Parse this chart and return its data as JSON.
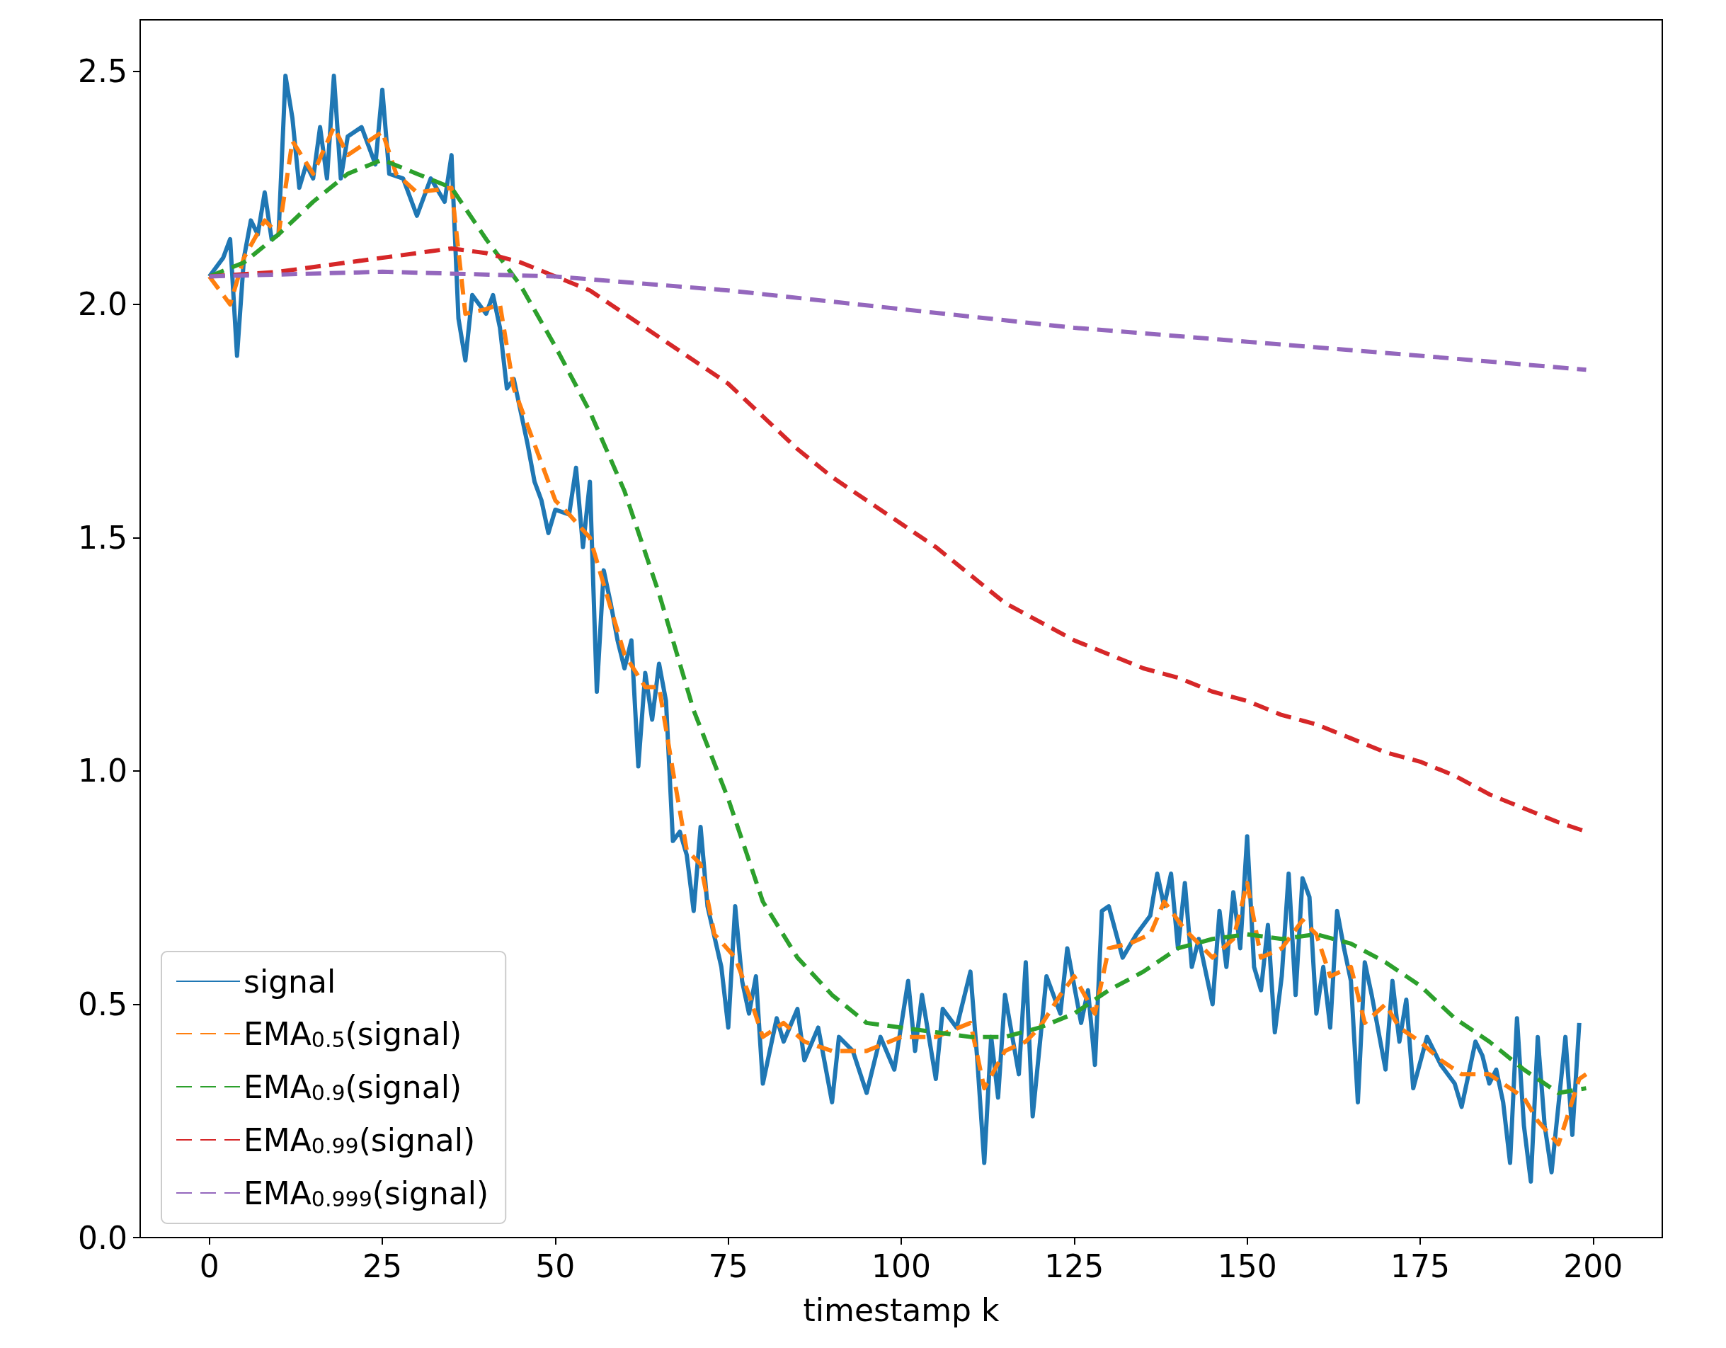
{
  "chart_data": {
    "type": "line",
    "xlabel": "timestamp k",
    "xlim": [
      -10,
      210
    ],
    "xticks": [
      0,
      25,
      50,
      75,
      100,
      125,
      150,
      175,
      200
    ],
    "ylim": [
      0,
      2.61
    ],
    "yticks": [
      {
        "value": 0,
        "label": "0.0"
      },
      {
        "value": 0.5,
        "label": "0.5"
      },
      {
        "value": 1,
        "label": "1.0"
      },
      {
        "value": 1.5,
        "label": "1.5"
      },
      {
        "value": 2,
        "label": "2.0"
      },
      {
        "value": 2.5,
        "label": "2.5"
      }
    ],
    "grid": false,
    "legend": "bottom left",
    "series": [
      {
        "name": "signal",
        "color": "#1f77b4",
        "line_style": "solid",
        "x": [
          0,
          2,
          3,
          4,
          5,
          6,
          7,
          8,
          9,
          10,
          11,
          12,
          13,
          14,
          15,
          16,
          17,
          18,
          19,
          20,
          22,
          24,
          25,
          26,
          28,
          30,
          32,
          34,
          35,
          36,
          37,
          38,
          40,
          41,
          42,
          43,
          44,
          46,
          47,
          48,
          49,
          50,
          52,
          53,
          54,
          55,
          56,
          57,
          58,
          59,
          60,
          61,
          62,
          63,
          64,
          65,
          66,
          67,
          68,
          69,
          70,
          71,
          72,
          74,
          75,
          76,
          77,
          78,
          79,
          80,
          82,
          83,
          85,
          86,
          88,
          90,
          91,
          93,
          95,
          97,
          99,
          101,
          102,
          103,
          105,
          106,
          108,
          110,
          111,
          112,
          113,
          114,
          115,
          117,
          118,
          119,
          121,
          123,
          124,
          126,
          127,
          128,
          129,
          130,
          132,
          134,
          136,
          137,
          138,
          139,
          140,
          141,
          142,
          143,
          145,
          146,
          147,
          148,
          149,
          150,
          151,
          152,
          153,
          154,
          155,
          156,
          157,
          158,
          159,
          160,
          161,
          162,
          163,
          164,
          165,
          166,
          167,
          168,
          170,
          171,
          172,
          173,
          174,
          176,
          178,
          180,
          181,
          183,
          184,
          185,
          186,
          187,
          188,
          189,
          190,
          191,
          192,
          193,
          194,
          196,
          197,
          198
        ],
        "values": [
          2.06,
          2.1,
          2.14,
          1.89,
          2.1,
          2.18,
          2.15,
          2.24,
          2.14,
          2.15,
          2.49,
          2.4,
          2.25,
          2.3,
          2.27,
          2.38,
          2.27,
          2.49,
          2.27,
          2.36,
          2.38,
          2.3,
          2.46,
          2.28,
          2.27,
          2.19,
          2.27,
          2.22,
          2.32,
          1.97,
          1.88,
          2.02,
          1.98,
          2.02,
          1.95,
          1.82,
          1.84,
          1.7,
          1.62,
          1.58,
          1.51,
          1.56,
          1.55,
          1.65,
          1.48,
          1.62,
          1.17,
          1.43,
          1.36,
          1.28,
          1.22,
          1.28,
          1.01,
          1.21,
          1.11,
          1.23,
          1.15,
          0.85,
          0.87,
          0.82,
          0.7,
          0.88,
          0.71,
          0.58,
          0.45,
          0.71,
          0.55,
          0.48,
          0.56,
          0.33,
          0.47,
          0.42,
          0.49,
          0.38,
          0.45,
          0.29,
          0.43,
          0.4,
          0.31,
          0.43,
          0.36,
          0.55,
          0.4,
          0.52,
          0.34,
          0.49,
          0.45,
          0.57,
          0.38,
          0.16,
          0.43,
          0.3,
          0.52,
          0.35,
          0.59,
          0.26,
          0.56,
          0.48,
          0.62,
          0.46,
          0.53,
          0.37,
          0.7,
          0.71,
          0.6,
          0.65,
          0.69,
          0.78,
          0.71,
          0.78,
          0.62,
          0.76,
          0.58,
          0.64,
          0.5,
          0.7,
          0.58,
          0.74,
          0.62,
          0.86,
          0.58,
          0.53,
          0.67,
          0.44,
          0.56,
          0.78,
          0.52,
          0.77,
          0.73,
          0.48,
          0.58,
          0.45,
          0.7,
          0.62,
          0.55,
          0.29,
          0.59,
          0.52,
          0.36,
          0.55,
          0.42,
          0.51,
          0.32,
          0.43,
          0.37,
          0.33,
          0.28,
          0.42,
          0.39,
          0.33,
          0.36,
          0.29,
          0.16,
          0.47,
          0.24,
          0.12,
          0.43,
          0.24,
          0.14,
          0.43,
          0.22,
          0.46
        ]
      },
      {
        "name": "EMA$_{0.5}$(signal)",
        "color": "#ff7f0e",
        "line_style": "dashed",
        "x": [
          0,
          3,
          5,
          8,
          10,
          12,
          15,
          18,
          20,
          25,
          27,
          30,
          35,
          37,
          40,
          42,
          44,
          47,
          50,
          52,
          55,
          57,
          60,
          63,
          65,
          67,
          69,
          71,
          73,
          76,
          78,
          80,
          83,
          86,
          90,
          95,
          100,
          105,
          110,
          112,
          115,
          118,
          120,
          123,
          125,
          128,
          130,
          133,
          136,
          138,
          141,
          145,
          148,
          150,
          152,
          155,
          158,
          160,
          162,
          165,
          167,
          170,
          172,
          175,
          178,
          181,
          185,
          188,
          190,
          192,
          195,
          198,
          199
        ],
        "values": [
          2.06,
          2.0,
          2.1,
          2.18,
          2.15,
          2.35,
          2.28,
          2.38,
          2.32,
          2.37,
          2.28,
          2.24,
          2.25,
          1.98,
          1.99,
          2.0,
          1.82,
          1.7,
          1.58,
          1.55,
          1.5,
          1.4,
          1.25,
          1.18,
          1.18,
          1.0,
          0.83,
          0.8,
          0.65,
          0.6,
          0.52,
          0.43,
          0.46,
          0.42,
          0.4,
          0.4,
          0.43,
          0.43,
          0.46,
          0.32,
          0.4,
          0.42,
          0.45,
          0.52,
          0.56,
          0.48,
          0.62,
          0.63,
          0.65,
          0.72,
          0.66,
          0.6,
          0.64,
          0.76,
          0.6,
          0.62,
          0.68,
          0.65,
          0.56,
          0.58,
          0.46,
          0.5,
          0.45,
          0.42,
          0.38,
          0.35,
          0.35,
          0.32,
          0.3,
          0.25,
          0.2,
          0.34,
          0.35
        ]
      },
      {
        "name": "EMA$_{0.9}$(signal)",
        "color": "#2ca02c",
        "line_style": "dashed",
        "x": [
          0,
          5,
          10,
          15,
          20,
          25,
          30,
          35,
          40,
          45,
          50,
          55,
          60,
          65,
          70,
          75,
          80,
          85,
          90,
          95,
          100,
          105,
          110,
          115,
          120,
          125,
          130,
          135,
          140,
          145,
          150,
          155,
          160,
          165,
          170,
          175,
          180,
          185,
          190,
          195,
          199
        ],
        "values": [
          2.06,
          2.09,
          2.15,
          2.22,
          2.28,
          2.31,
          2.28,
          2.25,
          2.14,
          2.04,
          1.91,
          1.77,
          1.6,
          1.38,
          1.13,
          0.94,
          0.72,
          0.6,
          0.52,
          0.46,
          0.45,
          0.44,
          0.43,
          0.43,
          0.45,
          0.48,
          0.53,
          0.57,
          0.62,
          0.64,
          0.65,
          0.64,
          0.65,
          0.63,
          0.59,
          0.54,
          0.47,
          0.42,
          0.36,
          0.31,
          0.32
        ]
      },
      {
        "name": "EMA$_{0.99}$(signal)",
        "color": "#d62728",
        "line_style": "dashed",
        "x": [
          0,
          10,
          20,
          30,
          35,
          40,
          45,
          50,
          55,
          60,
          65,
          70,
          75,
          80,
          85,
          90,
          95,
          100,
          105,
          110,
          115,
          120,
          125,
          130,
          135,
          140,
          145,
          150,
          155,
          160,
          165,
          170,
          175,
          180,
          185,
          190,
          195,
          199
        ],
        "values": [
          2.06,
          2.07,
          2.09,
          2.11,
          2.12,
          2.11,
          2.09,
          2.06,
          2.03,
          1.98,
          1.93,
          1.88,
          1.83,
          1.76,
          1.69,
          1.63,
          1.58,
          1.53,
          1.48,
          1.42,
          1.36,
          1.32,
          1.28,
          1.25,
          1.22,
          1.2,
          1.17,
          1.15,
          1.12,
          1.1,
          1.07,
          1.04,
          1.02,
          0.99,
          0.95,
          0.92,
          0.89,
          0.87
        ]
      },
      {
        "name": "EMA$_{0.999}$(signal)",
        "color": "#9467bd",
        "line_style": "dashed",
        "x": [
          0,
          25,
          50,
          75,
          100,
          125,
          150,
          175,
          199
        ],
        "values": [
          2.06,
          2.07,
          2.06,
          2.03,
          1.99,
          1.95,
          1.92,
          1.89,
          1.86
        ]
      }
    ]
  }
}
